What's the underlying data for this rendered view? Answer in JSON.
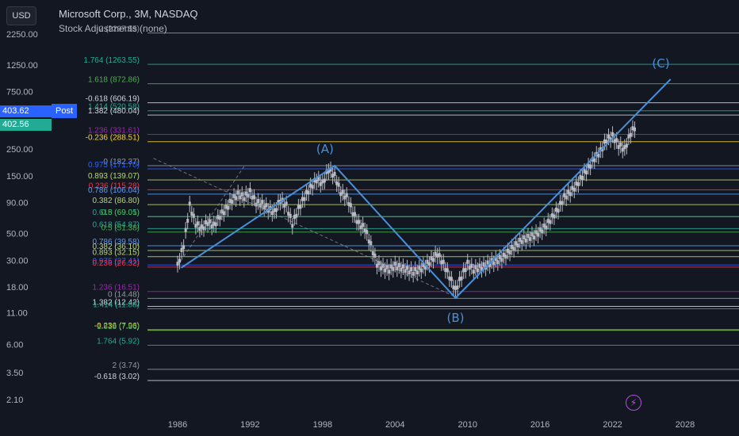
{
  "currency_button": "USD",
  "header": {
    "title": "Microsoft Corp., 3M, NASDAQ",
    "subtitle": "Stock Adjustments (none)"
  },
  "price_tags": {
    "last": "403.62",
    "post_label": "Post",
    "post_price": "402.56"
  },
  "colors": {
    "background": "#131722",
    "wave": "#4a90d9",
    "candle": "#b7bac2",
    "last_tag": "#2962ff",
    "post_tag": "#22ab94",
    "post_badge": "#2962ff",
    "flash_icon": "#c44be0"
  },
  "icons": {
    "flash": "lightning-icon"
  },
  "chart_data": {
    "type": "candlestick",
    "y_scale": "log",
    "y_ticks": [
      2.1,
      3.5,
      6.0,
      11.0,
      18.0,
      30.0,
      50.0,
      90.0,
      150.0,
      250.0,
      750.0,
      1250.0,
      2250.0
    ],
    "y_tick_labels": [
      "2.10",
      "3.50",
      "6.00",
      "11.00",
      "18.00",
      "30.00",
      "50.00",
      "90.00",
      "150.00",
      "250.00",
      "750.00",
      "1250.00",
      "2250.00"
    ],
    "x_ticks": [
      1986,
      1992,
      1998,
      2004,
      2010,
      2016,
      2022,
      2028
    ],
    "x_tick_labels": [
      "1986",
      "1992",
      "1998",
      "2004",
      "2010",
      "2016",
      "2022",
      "2028"
    ],
    "price_points": [
      [
        1986.0,
        27
      ],
      [
        1986.5,
        40
      ],
      [
        1987.0,
        85
      ],
      [
        1987.5,
        60
      ],
      [
        1988.0,
        55
      ],
      [
        1988.5,
        62
      ],
      [
        1989.0,
        58
      ],
      [
        1989.5,
        70
      ],
      [
        1990.0,
        80
      ],
      [
        1990.5,
        95
      ],
      [
        1991.0,
        105
      ],
      [
        1991.5,
        100
      ],
      [
        1992.0,
        110
      ],
      [
        1992.5,
        90
      ],
      [
        1993.0,
        88
      ],
      [
        1993.5,
        80
      ],
      [
        1994.0,
        75
      ],
      [
        1994.5,
        95
      ],
      [
        1995.0,
        85
      ],
      [
        1995.5,
        60
      ],
      [
        1996.0,
        80
      ],
      [
        1996.5,
        100
      ],
      [
        1997.0,
        120
      ],
      [
        1997.5,
        140
      ],
      [
        1998.0,
        130
      ],
      [
        1998.5,
        170
      ],
      [
        1999.0,
        150
      ],
      [
        1999.5,
        110
      ],
      [
        2000.0,
        100
      ],
      [
        2000.5,
        75
      ],
      [
        2001.0,
        60
      ],
      [
        2001.5,
        55
      ],
      [
        2002.0,
        40
      ],
      [
        2002.5,
        28
      ],
      [
        2003.0,
        26
      ],
      [
        2003.5,
        25
      ],
      [
        2004.0,
        27
      ],
      [
        2004.5,
        26
      ],
      [
        2005.0,
        25
      ],
      [
        2005.5,
        24
      ],
      [
        2006.0,
        25
      ],
      [
        2006.5,
        27
      ],
      [
        2007.0,
        30
      ],
      [
        2007.5,
        34
      ],
      [
        2008.0,
        28
      ],
      [
        2008.5,
        22
      ],
      [
        2009.0,
        17
      ],
      [
        2009.5,
        22
      ],
      [
        2010.0,
        28
      ],
      [
        2010.5,
        25
      ],
      [
        2011.0,
        26
      ],
      [
        2011.5,
        27
      ],
      [
        2012.0,
        29
      ],
      [
        2012.5,
        30
      ],
      [
        2013.0,
        32
      ],
      [
        2013.5,
        36
      ],
      [
        2014.0,
        40
      ],
      [
        2014.5,
        44
      ],
      [
        2015.0,
        46
      ],
      [
        2015.5,
        48
      ],
      [
        2016.0,
        52
      ],
      [
        2016.5,
        58
      ],
      [
        2017.0,
        68
      ],
      [
        2017.5,
        80
      ],
      [
        2018.0,
        100
      ],
      [
        2018.5,
        110
      ],
      [
        2019.0,
        125
      ],
      [
        2019.5,
        150
      ],
      [
        2020.0,
        175
      ],
      [
        2020.5,
        210
      ],
      [
        2021.0,
        240
      ],
      [
        2021.5,
        300
      ],
      [
        2022.0,
        320
      ],
      [
        2022.5,
        270
      ],
      [
        2023.0,
        250
      ],
      [
        2023.5,
        340
      ],
      [
        2024.0,
        400
      ]
    ],
    "wave_labels": [
      "(A)",
      "(B)",
      "(C)"
    ],
    "fib_levels": [
      {
        "label": "2 (2297.55)",
        "value": 2297.55,
        "color": "#9598a1"
      },
      {
        "label": "1.764 (1263.55)",
        "value": 1263.55,
        "color": "#22ab94"
      },
      {
        "label": "1.618 (872.86)",
        "value": 872.86,
        "color": "#4caf50"
      },
      {
        "label": "-0.618 (606.19)",
        "value": 606.19,
        "color": "#d1d4dc"
      },
      {
        "label": "1.414 (520.58)",
        "value": 520.58,
        "color": "#22ab94"
      },
      {
        "label": "1.382 (480.04)",
        "value": 480.04,
        "color": "#d1d4dc"
      },
      {
        "label": "1.236 (331.61)",
        "value": 331.61,
        "color": "#9c27b0"
      },
      {
        "label": "-0.236 (288.51)",
        "value": 288.51,
        "color": "#f7d038"
      },
      {
        "label": "0 (182.37)",
        "value": 182.37,
        "color": "#9598a1"
      },
      {
        "label": "0.975 (171.70)",
        "value": 171.7,
        "color": "#2962ff"
      },
      {
        "label": "0.893 (139.07)",
        "value": 139.07,
        "color": "#b9d57a"
      },
      {
        "label": "0.236 (115.28)",
        "value": 115.28,
        "color": "#f23645"
      },
      {
        "label": "0.786 (106.04)",
        "value": 106.04,
        "color": "#5b9cf6"
      },
      {
        "label": "0.382 (86.80)",
        "value": 86.8,
        "color": "#b9d57a"
      },
      {
        "label": "0.618 (69.05)",
        "value": 69.05,
        "color": "#22ab94"
      },
      {
        "label": "0.5 (69.01)",
        "value": 69.01,
        "color": "#4caf50"
      },
      {
        "label": "0.618 (54.87)",
        "value": 54.87,
        "color": "#22ab94"
      },
      {
        "label": "0.5 (51.38)",
        "value": 51.38,
        "color": "#4caf50"
      },
      {
        "label": "0.786 (39.58)",
        "value": 39.58,
        "color": "#5b9cf6"
      },
      {
        "label": "0.382 (36.10)",
        "value": 36.1,
        "color": "#b9d57a"
      },
      {
        "label": "0.893 (32.15)",
        "value": 32.15,
        "color": "#b9d57a"
      },
      {
        "label": "0.975 (27.41)",
        "value": 27.41,
        "color": "#2962ff"
      },
      {
        "label": "0.236 (26.32)",
        "value": 26.32,
        "color": "#f23645"
      },
      {
        "label": "1.236 (16.51)",
        "value": 16.51,
        "color": "#9c27b0"
      },
      {
        "label": "0 (14.48)",
        "value": 14.48,
        "color": "#9598a1"
      },
      {
        "label": "1.382 (12.42)",
        "value": 12.42,
        "color": "#d1d4dc"
      },
      {
        "label": "1.414 (11.88)",
        "value": 11.88,
        "color": "#22ab94"
      },
      {
        "label": "-0.236 (7.96)",
        "value": 7.96,
        "color": "#f7d038"
      },
      {
        "label": "1.618 (7.86)",
        "value": 7.86,
        "color": "#4caf50"
      },
      {
        "label": "1.764 (5.92)",
        "value": 5.92,
        "color": "#22ab94"
      },
      {
        "label": "2 (3.74)",
        "value": 3.74,
        "color": "#9598a1"
      },
      {
        "label": "-0.618 (3.02)",
        "value": 3.02,
        "color": "#d1d4dc"
      }
    ]
  }
}
